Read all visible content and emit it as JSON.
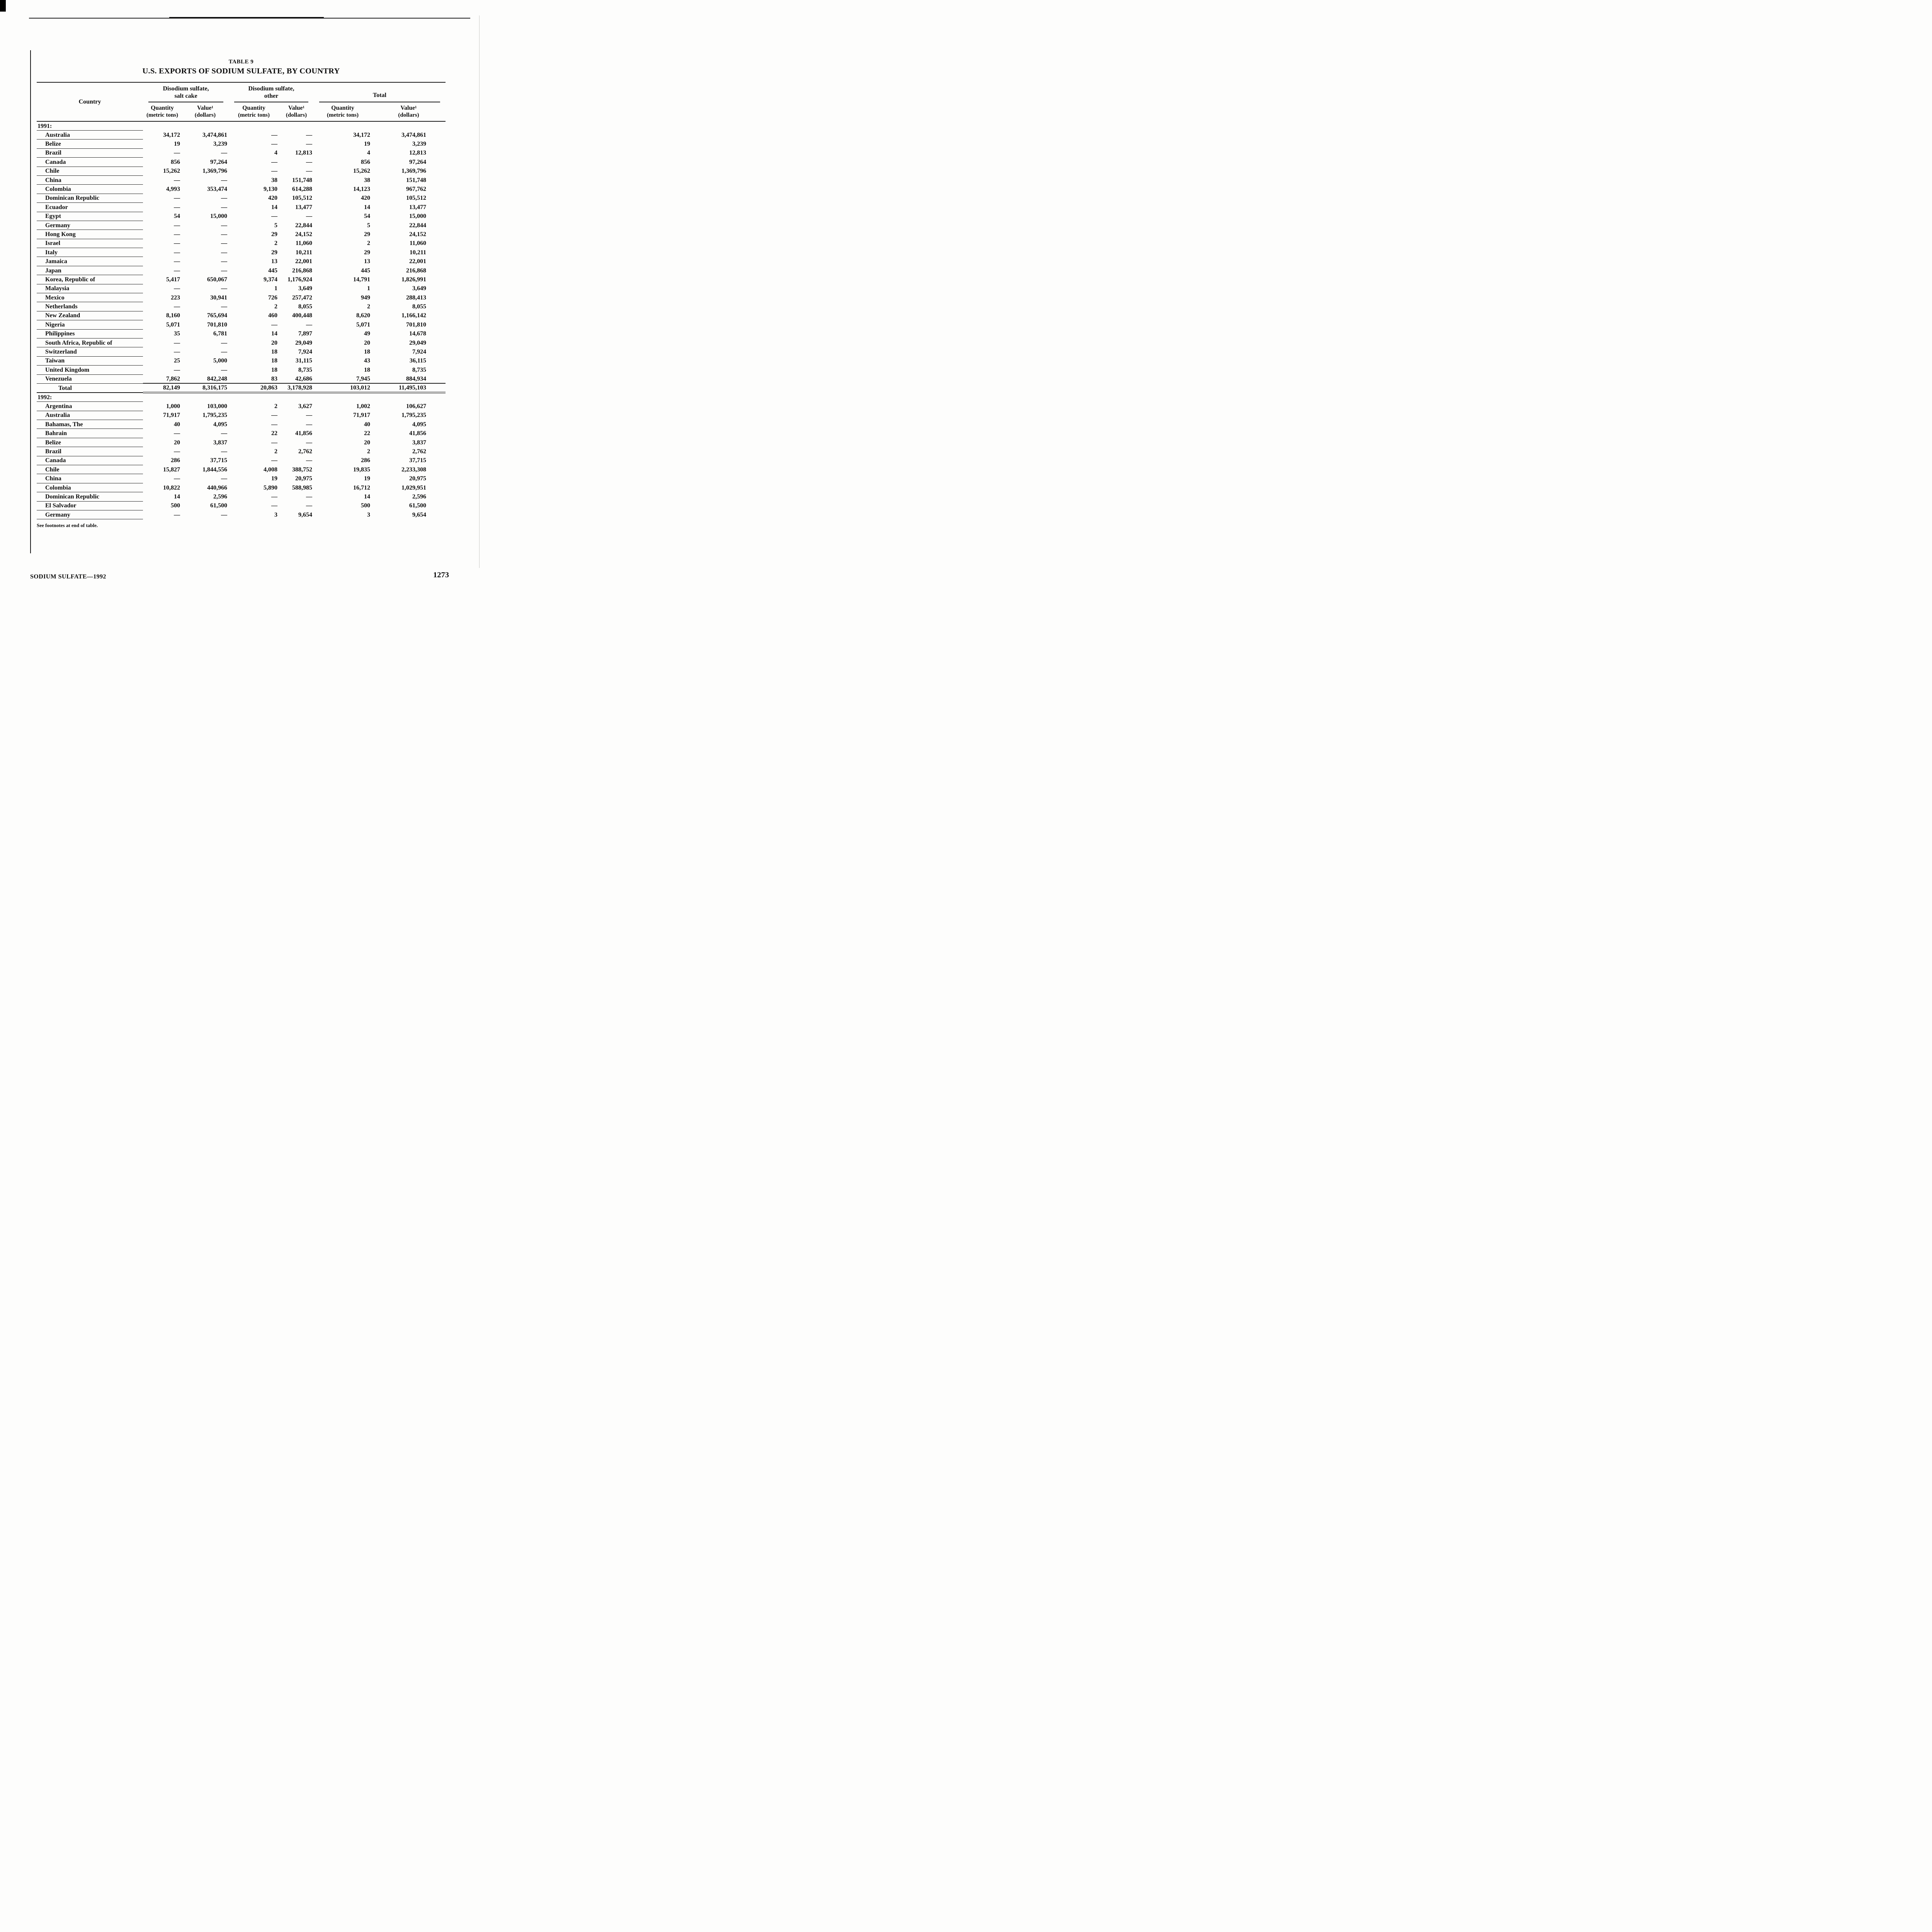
{
  "page": {
    "table_label": "TABLE 9",
    "title": "U.S. EXPORTS OF SODIUM SULFATE, BY COUNTRY",
    "footnote": "See footnotes at end of table.",
    "footer_left": "SODIUM SULFATE—1992",
    "page_number": "1273"
  },
  "table": {
    "header": {
      "country": "Country",
      "groups": [
        {
          "line1": "Disodium sulfate,",
          "line2": "salt cake"
        },
        {
          "line1": "Disodium sulfate,",
          "line2": "other"
        },
        {
          "line1": "Total",
          "line2": ""
        }
      ],
      "sub": [
        {
          "label": "Quantity",
          "unit": "(metric tons)"
        },
        {
          "label": "Value¹",
          "unit": "(dollars)"
        }
      ]
    },
    "sections": [
      {
        "year": "1991:",
        "rows": [
          {
            "country": "Australia",
            "cells": [
              "34,172",
              "3,474,861",
              "—",
              "—",
              "34,172",
              "3,474,861"
            ]
          },
          {
            "country": "Belize",
            "cells": [
              "19",
              "3,239",
              "—",
              "—",
              "19",
              "3,239"
            ]
          },
          {
            "country": "Brazil",
            "cells": [
              "—",
              "—",
              "4",
              "12,813",
              "4",
              "12,813"
            ]
          },
          {
            "country": "Canada",
            "cells": [
              "856",
              "97,264",
              "—",
              "—",
              "856",
              "97,264"
            ]
          },
          {
            "country": "Chile",
            "cells": [
              "15,262",
              "1,369,796",
              "—",
              "—",
              "15,262",
              "1,369,796"
            ]
          },
          {
            "country": "China",
            "cells": [
              "—",
              "—",
              "38",
              "151,748",
              "38",
              "151,748"
            ]
          },
          {
            "country": "Colombia",
            "cells": [
              "4,993",
              "353,474",
              "9,130",
              "614,288",
              "14,123",
              "967,762"
            ]
          },
          {
            "country": "Dominican Republic",
            "cells": [
              "—",
              "—",
              "420",
              "105,512",
              "420",
              "105,512"
            ]
          },
          {
            "country": "Ecuador",
            "cells": [
              "—",
              "—",
              "14",
              "13,477",
              "14",
              "13,477"
            ]
          },
          {
            "country": "Egypt",
            "cells": [
              "54",
              "15,000",
              "—",
              "—",
              "54",
              "15,000"
            ]
          },
          {
            "country": "Germany",
            "cells": [
              "—",
              "—",
              "5",
              "22,844",
              "5",
              "22,844"
            ]
          },
          {
            "country": "Hong Kong",
            "cells": [
              "—",
              "—",
              "29",
              "24,152",
              "29",
              "24,152"
            ]
          },
          {
            "country": "Israel",
            "cells": [
              "—",
              "—",
              "2",
              "11,060",
              "2",
              "11,060"
            ]
          },
          {
            "country": "Italy",
            "cells": [
              "—",
              "—",
              "29",
              "10,211",
              "29",
              "10,211"
            ]
          },
          {
            "country": "Jamaica",
            "cells": [
              "—",
              "—",
              "13",
              "22,001",
              "13",
              "22,001"
            ]
          },
          {
            "country": "Japan",
            "cells": [
              "—",
              "—",
              "445",
              "216,868",
              "445",
              "216,868"
            ]
          },
          {
            "country": "Korea, Republic of",
            "cells": [
              "5,417",
              "650,067",
              "9,374",
              "1,176,924",
              "14,791",
              "1,826,991"
            ]
          },
          {
            "country": "Malaysia",
            "cells": [
              "—",
              "—",
              "1",
              "3,649",
              "1",
              "3,649"
            ]
          },
          {
            "country": "Mexico",
            "cells": [
              "223",
              "30,941",
              "726",
              "257,472",
              "949",
              "288,413"
            ]
          },
          {
            "country": "Netherlands",
            "cells": [
              "—",
              "—",
              "2",
              "8,055",
              "2",
              "8,055"
            ]
          },
          {
            "country": "New Zealand",
            "cells": [
              "8,160",
              "765,694",
              "460",
              "400,448",
              "8,620",
              "1,166,142"
            ]
          },
          {
            "country": "Nigeria",
            "cells": [
              "5,071",
              "701,810",
              "—",
              "—",
              "5,071",
              "701,810"
            ]
          },
          {
            "country": "Philippines",
            "cells": [
              "35",
              "6,781",
              "14",
              "7,897",
              "49",
              "14,678"
            ]
          },
          {
            "country": "South Africa, Republic of",
            "cells": [
              "—",
              "—",
              "20",
              "29,049",
              "20",
              "29,049"
            ]
          },
          {
            "country": "Switzerland",
            "cells": [
              "—",
              "—",
              "18",
              "7,924",
              "18",
              "7,924"
            ]
          },
          {
            "country": "Taiwan",
            "cells": [
              "25",
              "5,000",
              "18",
              "31,115",
              "43",
              "36,115"
            ]
          },
          {
            "country": "United Kingdom",
            "cells": [
              "—",
              "—",
              "18",
              "8,735",
              "18",
              "8,735"
            ]
          },
          {
            "country": "Venezuela",
            "cells": [
              "7,862",
              "842,248",
              "83",
              "42,686",
              "7,945",
              "884,934"
            ]
          }
        ],
        "total": {
          "label": "Total",
          "cells": [
            "82,149",
            "8,316,175",
            "20,863",
            "3,178,928",
            "103,012",
            "11,495,103"
          ]
        }
      },
      {
        "year": "1992:",
        "rows": [
          {
            "country": "Argentina",
            "cells": [
              "1,000",
              "103,000",
              "2",
              "3,627",
              "1,002",
              "106,627"
            ]
          },
          {
            "country": "Australia",
            "cells": [
              "71,917",
              "1,795,235",
              "—",
              "—",
              "71,917",
              "1,795,235"
            ]
          },
          {
            "country": "Bahamas, The",
            "cells": [
              "40",
              "4,095",
              "—",
              "—",
              "40",
              "4,095"
            ]
          },
          {
            "country": "Bahrain",
            "cells": [
              "—",
              "—",
              "22",
              "41,856",
              "22",
              "41,856"
            ]
          },
          {
            "country": "Belize",
            "cells": [
              "20",
              "3,837",
              "—",
              "—",
              "20",
              "3,837"
            ]
          },
          {
            "country": "Brazil",
            "cells": [
              "—",
              "—",
              "2",
              "2,762",
              "2",
              "2,762"
            ]
          },
          {
            "country": "Canada",
            "cells": [
              "286",
              "37,715",
              "—",
              "—",
              "286",
              "37,715"
            ]
          },
          {
            "country": "Chile",
            "cells": [
              "15,827",
              "1,844,556",
              "4,008",
              "388,752",
              "19,835",
              "2,233,308"
            ]
          },
          {
            "country": "China",
            "cells": [
              "—",
              "—",
              "19",
              "20,975",
              "19",
              "20,975"
            ]
          },
          {
            "country": "Colombia",
            "cells": [
              "10,822",
              "440,966",
              "5,890",
              "588,985",
              "16,712",
              "1,029,951"
            ]
          },
          {
            "country": "Dominican Republic",
            "cells": [
              "14",
              "2,596",
              "—",
              "—",
              "14",
              "2,596"
            ]
          },
          {
            "country": "El Salvador",
            "cells": [
              "500",
              "61,500",
              "—",
              "—",
              "500",
              "61,500"
            ]
          },
          {
            "country": "Germany",
            "cells": [
              "—",
              "—",
              "3",
              "9,654",
              "3",
              "9,654"
            ]
          }
        ]
      }
    ]
  }
}
